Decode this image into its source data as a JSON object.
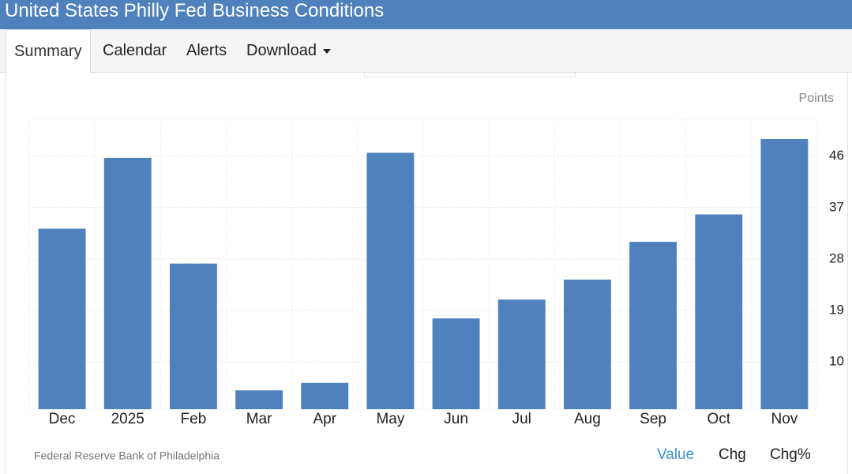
{
  "header": {
    "title": "United States Philly Fed Business Conditions"
  },
  "tabs": [
    "Summary",
    "Calendar",
    "Alerts",
    "Download"
  ],
  "chart_data": {
    "type": "bar",
    "unit_label": "Points",
    "categories": [
      "Dec",
      "2025",
      "Feb",
      "Mar",
      "Apr",
      "May",
      "Jun",
      "Jul",
      "Aug",
      "Sep",
      "Oct",
      "Nov"
    ],
    "values": [
      33.3,
      45.7,
      27.2,
      5.0,
      6.3,
      46.6,
      17.6,
      20.9,
      24.4,
      31.0,
      35.8,
      49.0
    ],
    "color": "#4f81bd",
    "ylim": [
      1.7,
      52.6
    ],
    "yticks": [
      10,
      19,
      28,
      37,
      46
    ],
    "grid": true,
    "y_axis_side": "right"
  },
  "footer": {
    "source": "Federal Reserve Bank of Philadelphia",
    "buttons": [
      "Value",
      "Chg",
      "Chg%"
    ]
  }
}
